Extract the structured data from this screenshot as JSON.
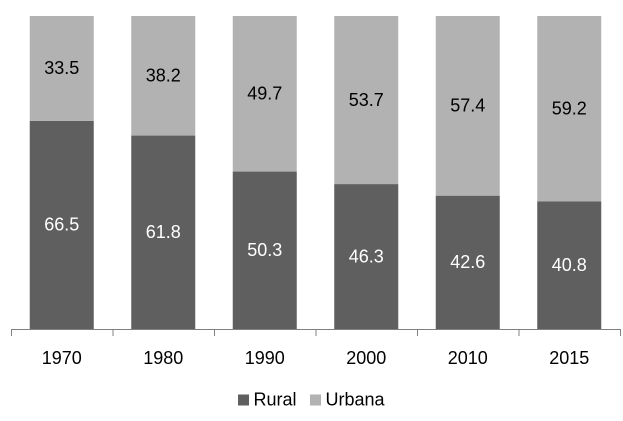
{
  "chart_data": {
    "type": "bar",
    "stacked": true,
    "percent": true,
    "categories": [
      "1970",
      "1980",
      "1990",
      "2000",
      "2010",
      "2015"
    ],
    "series": [
      {
        "name": "Rural",
        "values": [
          66.5,
          61.8,
          50.3,
          46.3,
          42.6,
          40.8
        ],
        "color": "#5f5f5f",
        "label_color": "#ffffff"
      },
      {
        "name": "Urbana",
        "values": [
          33.5,
          38.2,
          49.7,
          53.7,
          57.4,
          59.2
        ],
        "color": "#b2b2b2",
        "label_color": "#000000"
      }
    ],
    "ylim": [
      0,
      100
    ],
    "grid": false,
    "legend_position": "bottom"
  }
}
